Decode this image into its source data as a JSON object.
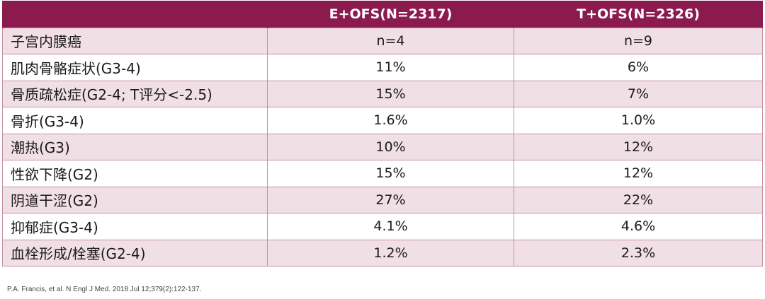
{
  "table": {
    "headers": [
      "",
      "E+OFS(N=2317)",
      "T+OFS(N=2326)"
    ],
    "rows": [
      {
        "label": "子宫内膜癌",
        "e": "n=4",
        "t": "n=9"
      },
      {
        "label": "肌肉骨骼症状(G3-4)",
        "e": "11%",
        "t": "6%"
      },
      {
        "label": "骨质疏松症(G2-4; T评分<-2.5)",
        "e": "15%",
        "t": "7%"
      },
      {
        "label": "骨折(G3-4)",
        "e": "1.6%",
        "t": "1.0%"
      },
      {
        "label": "潮热(G3)",
        "e": "10%",
        "t": "12%"
      },
      {
        "label": "性欲下降(G2)",
        "e": "15%",
        "t": "12%"
      },
      {
        "label": "阴道干涩(G2)",
        "e": "27%",
        "t": "22%"
      },
      {
        "label": "抑郁症(G3-4)",
        "e": "4.1%",
        "t": "4.6%"
      },
      {
        "label": "血栓形成/栓塞(G2-4)",
        "e": "1.2%",
        "t": "2.3%"
      }
    ]
  },
  "footnote": "P.A. Francis, et al. N Engl J Med. 2018 Jul 12;379(2):122-137.",
  "colors": {
    "header_bg": "#8b1a4f",
    "row_shade": "#f0dfe4",
    "border": "#c78ea1"
  }
}
